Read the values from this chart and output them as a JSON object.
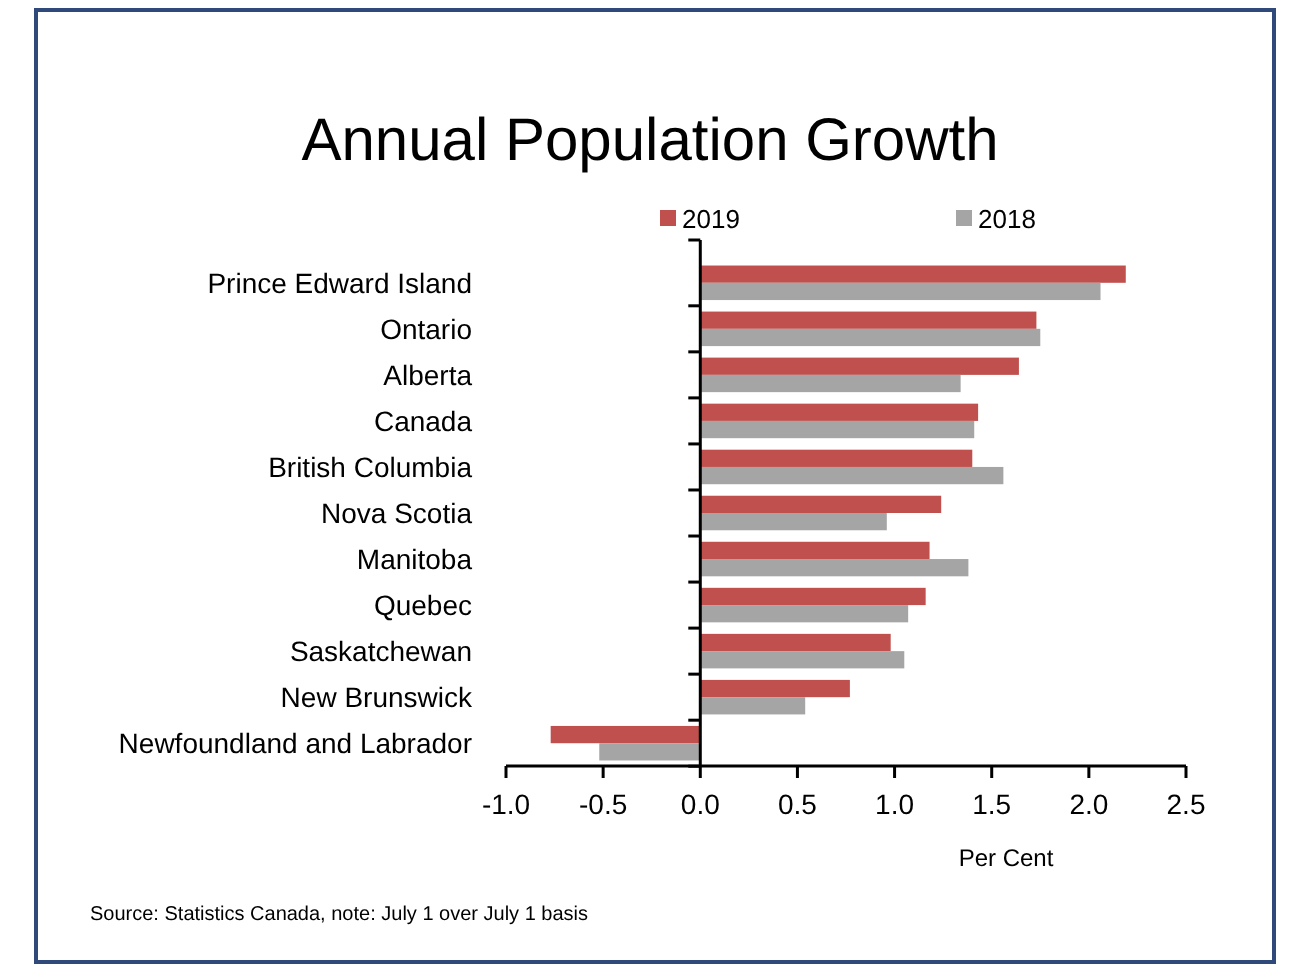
{
  "chart_data": {
    "type": "bar",
    "orientation": "horizontal",
    "title": "Annual Population Growth",
    "xlabel": "Per Cent",
    "categories": [
      "Prince Edward Island",
      "Ontario",
      "Alberta",
      "Canada",
      "British Columbia",
      "Nova Scotia",
      "Manitoba",
      "Quebec",
      "Saskatchewan",
      "New Brunswick",
      "Newfoundland and Labrador"
    ],
    "series": [
      {
        "name": "2019",
        "color": "#c0504d",
        "values": [
          2.19,
          1.73,
          1.64,
          1.43,
          1.4,
          1.24,
          1.18,
          1.16,
          0.98,
          0.77,
          -0.77
        ]
      },
      {
        "name": "2018",
        "color": "#a5a5a5",
        "values": [
          2.06,
          1.75,
          1.34,
          1.41,
          1.56,
          0.96,
          1.38,
          1.07,
          1.05,
          0.54,
          -0.52
        ]
      }
    ],
    "xlim": [
      -1.0,
      2.5
    ],
    "xticks": [
      {
        "value": -1,
        "label": "-1.0"
      },
      {
        "value": -0.5,
        "label": "-0.5"
      },
      {
        "value": 0,
        "label": "0.0"
      },
      {
        "value": 0.5,
        "label": "0.5"
      },
      {
        "value": 1,
        "label": "1.0"
      },
      {
        "value": 1.5,
        "label": "1.5"
      },
      {
        "value": 2,
        "label": "2.0"
      },
      {
        "value": 2.5,
        "label": "2.5"
      }
    ],
    "legend": "top",
    "annotations": [
      "Source: Statistics Canada, note: July 1 over July 1 basis"
    ]
  }
}
